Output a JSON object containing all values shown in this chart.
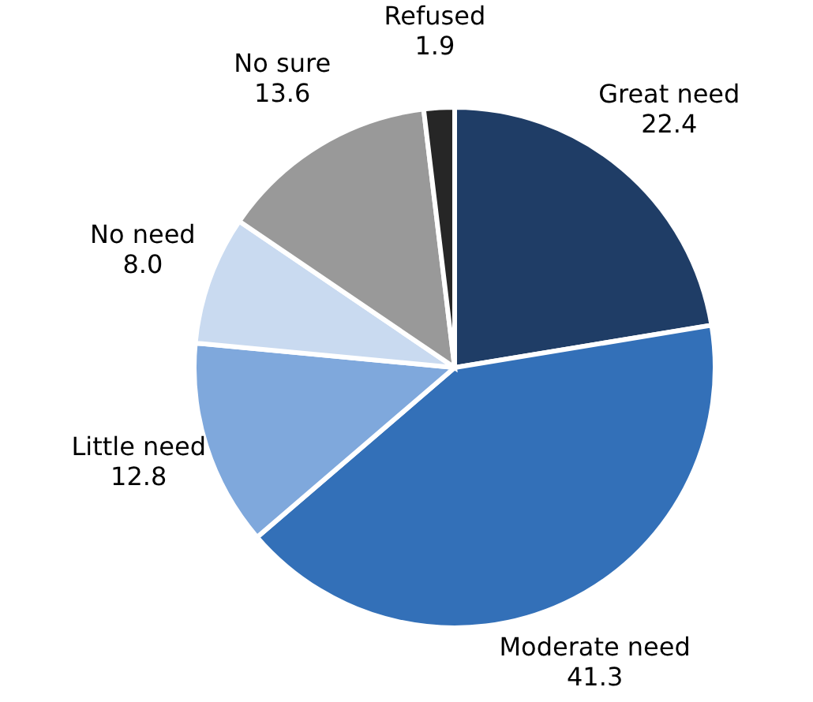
{
  "chart_data": {
    "type": "pie",
    "categories": [
      "Great need",
      "Moderate need",
      "Little need",
      "No need",
      "No sure",
      "Refused"
    ],
    "values": [
      22.4,
      41.3,
      12.8,
      8.0,
      13.6,
      1.9
    ],
    "value_labels": [
      "22.4",
      "41.3",
      "12.8",
      "8.0",
      "13.6",
      "1.9"
    ],
    "colors": [
      "#1f3d66",
      "#3370b8",
      "#7fa8dc",
      "#c9daf0",
      "#999999",
      "#262626"
    ],
    "legend": false
  }
}
